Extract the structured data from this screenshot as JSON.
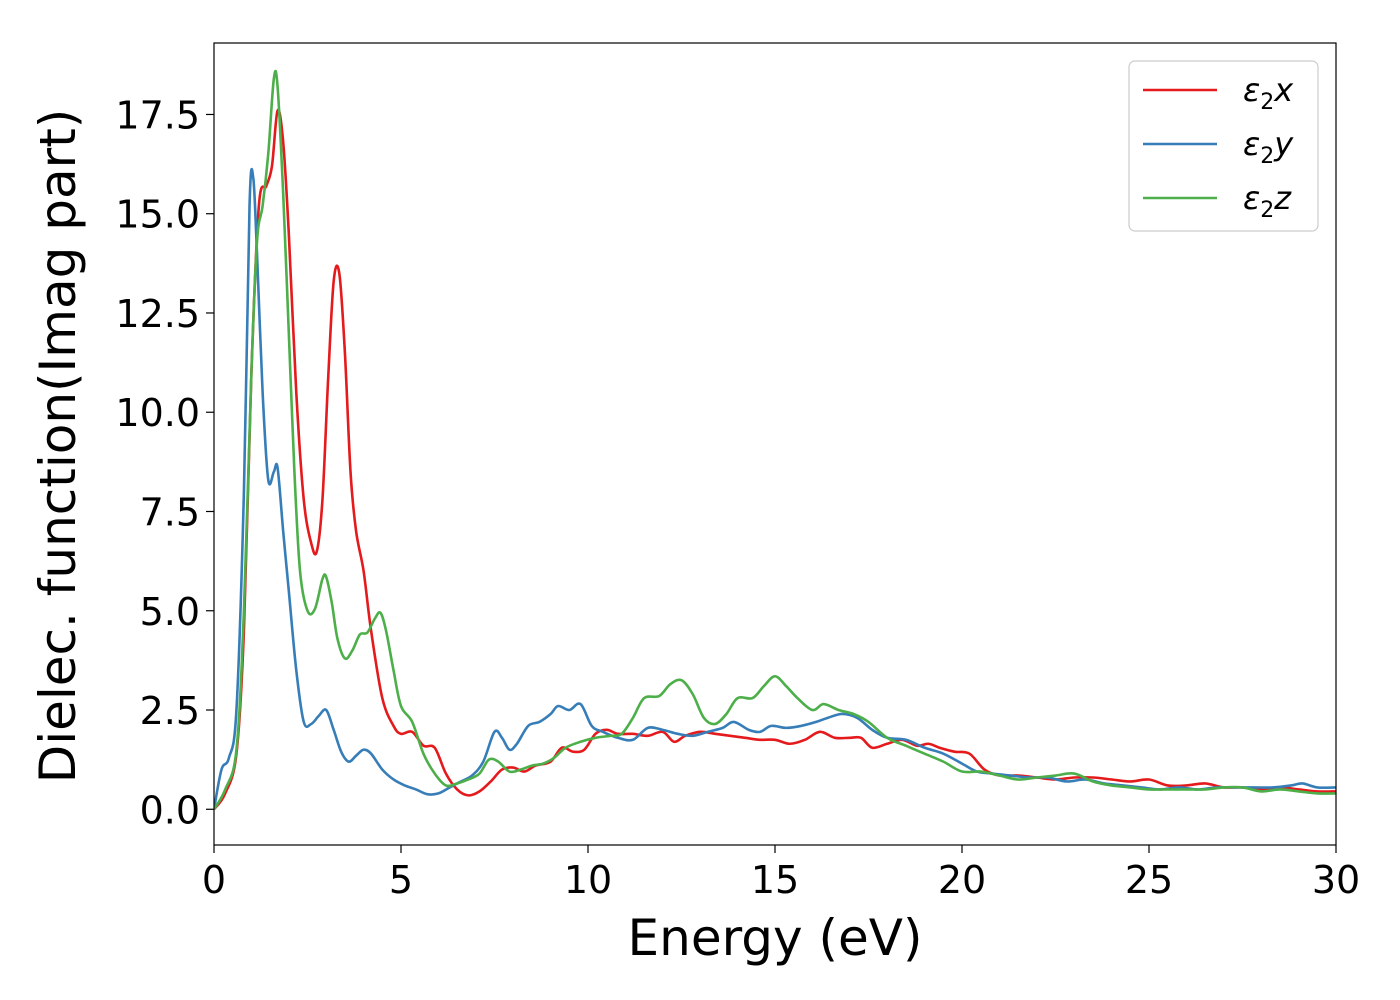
{
  "chart_data": {
    "type": "line",
    "title": "",
    "xlabel": "Energy (eV)",
    "ylabel": "Dielec. function(Imag part)",
    "xlim": [
      0,
      30
    ],
    "ylim": [
      -0.9,
      19.3
    ],
    "xticks": [
      0,
      5,
      10,
      15,
      20,
      25,
      30
    ],
    "xtick_labels": [
      "0",
      "5",
      "10",
      "15",
      "20",
      "25",
      "30"
    ],
    "yticks": [
      0.0,
      2.5,
      5.0,
      7.5,
      10.0,
      12.5,
      15.0,
      17.5
    ],
    "ytick_labels": [
      "0.0",
      "2.5",
      "5.0",
      "7.5",
      "10.0",
      "12.5",
      "15.0",
      "17.5"
    ],
    "grid": false,
    "legend": {
      "position": "top-right"
    },
    "series": [
      {
        "name": "ε₂x",
        "legend_label": {
          "symbol": "ε",
          "sub": "2",
          "var": "x"
        },
        "color": "#e41a1c",
        "points": [
          [
            0,
            0
          ],
          [
            0.3,
            0.4
          ],
          [
            0.6,
            1.4
          ],
          [
            0.8,
            4.5
          ],
          [
            1.0,
            11.0
          ],
          [
            1.2,
            15.2
          ],
          [
            1.4,
            15.7
          ],
          [
            1.55,
            16.2
          ],
          [
            1.7,
            17.6
          ],
          [
            1.85,
            16.8
          ],
          [
            2.0,
            14.5
          ],
          [
            2.2,
            10.5
          ],
          [
            2.4,
            7.8
          ],
          [
            2.6,
            6.7
          ],
          [
            2.75,
            6.5
          ],
          [
            2.9,
            7.8
          ],
          [
            3.05,
            10.8
          ],
          [
            3.2,
            13.3
          ],
          [
            3.35,
            13.5
          ],
          [
            3.5,
            11.5
          ],
          [
            3.65,
            8.5
          ],
          [
            3.8,
            7.0
          ],
          [
            4.0,
            6.0
          ],
          [
            4.2,
            4.5
          ],
          [
            4.5,
            2.8
          ],
          [
            4.8,
            2.1
          ],
          [
            5.0,
            1.9
          ],
          [
            5.3,
            1.95
          ],
          [
            5.6,
            1.6
          ],
          [
            5.9,
            1.55
          ],
          [
            6.2,
            0.9
          ],
          [
            6.5,
            0.5
          ],
          [
            6.8,
            0.35
          ],
          [
            7.1,
            0.45
          ],
          [
            7.4,
            0.7
          ],
          [
            7.7,
            1.0
          ],
          [
            8.0,
            1.05
          ],
          [
            8.3,
            0.95
          ],
          [
            8.6,
            1.1
          ],
          [
            9.0,
            1.2
          ],
          [
            9.3,
            1.55
          ],
          [
            9.6,
            1.45
          ],
          [
            9.9,
            1.5
          ],
          [
            10.2,
            1.9
          ],
          [
            10.5,
            2.0
          ],
          [
            10.8,
            1.9
          ],
          [
            11.2,
            1.9
          ],
          [
            11.6,
            1.85
          ],
          [
            12.0,
            1.95
          ],
          [
            12.3,
            1.7
          ],
          [
            12.6,
            1.85
          ],
          [
            13.0,
            1.95
          ],
          [
            13.4,
            1.9
          ],
          [
            13.8,
            1.85
          ],
          [
            14.2,
            1.8
          ],
          [
            14.6,
            1.75
          ],
          [
            15.0,
            1.75
          ],
          [
            15.4,
            1.65
          ],
          [
            15.8,
            1.75
          ],
          [
            16.2,
            1.95
          ],
          [
            16.6,
            1.8
          ],
          [
            17.0,
            1.8
          ],
          [
            17.3,
            1.8
          ],
          [
            17.6,
            1.55
          ],
          [
            18.0,
            1.65
          ],
          [
            18.4,
            1.75
          ],
          [
            18.8,
            1.6
          ],
          [
            19.1,
            1.65
          ],
          [
            19.4,
            1.55
          ],
          [
            19.8,
            1.45
          ],
          [
            20.2,
            1.4
          ],
          [
            20.6,
            1.0
          ],
          [
            21.0,
            0.85
          ],
          [
            21.5,
            0.85
          ],
          [
            22.0,
            0.8
          ],
          [
            22.5,
            0.75
          ],
          [
            23.0,
            0.8
          ],
          [
            23.5,
            0.8
          ],
          [
            24.0,
            0.75
          ],
          [
            24.5,
            0.7
          ],
          [
            25.0,
            0.75
          ],
          [
            25.5,
            0.6
          ],
          [
            26.0,
            0.6
          ],
          [
            26.5,
            0.65
          ],
          [
            27.0,
            0.55
          ],
          [
            27.5,
            0.55
          ],
          [
            28.0,
            0.5
          ],
          [
            28.5,
            0.55
          ],
          [
            29.0,
            0.5
          ],
          [
            29.5,
            0.45
          ],
          [
            30.0,
            0.45
          ]
        ]
      },
      {
        "name": "ε₂y",
        "legend_label": {
          "symbol": "ε",
          "sub": "2",
          "var": "y"
        },
        "color": "#377eb8",
        "points": [
          [
            0,
            0
          ],
          [
            0.2,
            1.0
          ],
          [
            0.4,
            1.3
          ],
          [
            0.6,
            2.5
          ],
          [
            0.8,
            8.0
          ],
          [
            0.95,
            15.2
          ],
          [
            1.05,
            15.9
          ],
          [
            1.15,
            14.0
          ],
          [
            1.3,
            10.5
          ],
          [
            1.45,
            8.3
          ],
          [
            1.6,
            8.5
          ],
          [
            1.7,
            8.6
          ],
          [
            1.85,
            7.0
          ],
          [
            2.0,
            5.5
          ],
          [
            2.2,
            3.5
          ],
          [
            2.4,
            2.2
          ],
          [
            2.6,
            2.15
          ],
          [
            2.8,
            2.35
          ],
          [
            3.0,
            2.5
          ],
          [
            3.2,
            2.0
          ],
          [
            3.4,
            1.45
          ],
          [
            3.6,
            1.2
          ],
          [
            3.8,
            1.35
          ],
          [
            4.0,
            1.5
          ],
          [
            4.2,
            1.4
          ],
          [
            4.5,
            1.0
          ],
          [
            4.8,
            0.75
          ],
          [
            5.1,
            0.6
          ],
          [
            5.4,
            0.5
          ],
          [
            5.7,
            0.38
          ],
          [
            6.0,
            0.4
          ],
          [
            6.3,
            0.55
          ],
          [
            6.6,
            0.7
          ],
          [
            6.9,
            0.85
          ],
          [
            7.2,
            1.2
          ],
          [
            7.5,
            1.95
          ],
          [
            7.7,
            1.8
          ],
          [
            7.9,
            1.5
          ],
          [
            8.1,
            1.65
          ],
          [
            8.4,
            2.1
          ],
          [
            8.7,
            2.2
          ],
          [
            9.0,
            2.4
          ],
          [
            9.2,
            2.6
          ],
          [
            9.5,
            2.5
          ],
          [
            9.8,
            2.65
          ],
          [
            10.1,
            2.1
          ],
          [
            10.4,
            1.95
          ],
          [
            10.8,
            1.8
          ],
          [
            11.2,
            1.75
          ],
          [
            11.6,
            2.05
          ],
          [
            12.0,
            2.0
          ],
          [
            12.4,
            1.9
          ],
          [
            12.8,
            1.85
          ],
          [
            13.2,
            1.95
          ],
          [
            13.6,
            2.05
          ],
          [
            13.9,
            2.2
          ],
          [
            14.3,
            2.0
          ],
          [
            14.6,
            1.95
          ],
          [
            14.9,
            2.1
          ],
          [
            15.3,
            2.05
          ],
          [
            15.7,
            2.1
          ],
          [
            16.1,
            2.2
          ],
          [
            16.4,
            2.3
          ],
          [
            16.8,
            2.4
          ],
          [
            17.2,
            2.3
          ],
          [
            17.6,
            2.0
          ],
          [
            18.0,
            1.8
          ],
          [
            18.5,
            1.75
          ],
          [
            19.0,
            1.55
          ],
          [
            19.5,
            1.4
          ],
          [
            20.0,
            1.15
          ],
          [
            20.4,
            0.95
          ],
          [
            20.8,
            0.9
          ],
          [
            21.3,
            0.85
          ],
          [
            21.8,
            0.8
          ],
          [
            22.3,
            0.8
          ],
          [
            22.8,
            0.7
          ],
          [
            23.3,
            0.75
          ],
          [
            23.8,
            0.65
          ],
          [
            24.3,
            0.6
          ],
          [
            24.8,
            0.55
          ],
          [
            25.3,
            0.5
          ],
          [
            25.8,
            0.55
          ],
          [
            26.3,
            0.5
          ],
          [
            26.8,
            0.55
          ],
          [
            27.3,
            0.55
          ],
          [
            27.8,
            0.55
          ],
          [
            28.3,
            0.55
          ],
          [
            28.8,
            0.6
          ],
          [
            29.1,
            0.65
          ],
          [
            29.5,
            0.55
          ],
          [
            30.0,
            0.55
          ]
        ]
      },
      {
        "name": "ε₂z",
        "legend_label": {
          "symbol": "ε",
          "sub": "2",
          "var": "z"
        },
        "color": "#4daf4a",
        "points": [
          [
            0,
            0
          ],
          [
            0.3,
            0.5
          ],
          [
            0.6,
            1.5
          ],
          [
            0.8,
            5.0
          ],
          [
            1.0,
            11.0
          ],
          [
            1.15,
            14.3
          ],
          [
            1.3,
            15.2
          ],
          [
            1.45,
            16.5
          ],
          [
            1.6,
            18.4
          ],
          [
            1.7,
            18.2
          ],
          [
            1.85,
            15.5
          ],
          [
            2.0,
            12.0
          ],
          [
            2.15,
            8.5
          ],
          [
            2.3,
            6.0
          ],
          [
            2.5,
            5.0
          ],
          [
            2.7,
            5.05
          ],
          [
            2.9,
            5.8
          ],
          [
            3.0,
            5.85
          ],
          [
            3.15,
            5.2
          ],
          [
            3.3,
            4.3
          ],
          [
            3.5,
            3.8
          ],
          [
            3.7,
            4.0
          ],
          [
            3.9,
            4.4
          ],
          [
            4.1,
            4.45
          ],
          [
            4.3,
            4.8
          ],
          [
            4.45,
            4.95
          ],
          [
            4.6,
            4.5
          ],
          [
            4.8,
            3.5
          ],
          [
            5.0,
            2.6
          ],
          [
            5.3,
            2.2
          ],
          [
            5.6,
            1.4
          ],
          [
            5.9,
            0.9
          ],
          [
            6.2,
            0.6
          ],
          [
            6.5,
            0.65
          ],
          [
            6.8,
            0.75
          ],
          [
            7.1,
            0.9
          ],
          [
            7.35,
            1.25
          ],
          [
            7.6,
            1.2
          ],
          [
            7.9,
            0.95
          ],
          [
            8.2,
            1.0
          ],
          [
            8.5,
            1.1
          ],
          [
            8.8,
            1.15
          ],
          [
            9.1,
            1.3
          ],
          [
            9.4,
            1.55
          ],
          [
            9.8,
            1.7
          ],
          [
            10.2,
            1.8
          ],
          [
            10.6,
            1.85
          ],
          [
            10.9,
            1.9
          ],
          [
            11.2,
            2.3
          ],
          [
            11.5,
            2.8
          ],
          [
            11.9,
            2.85
          ],
          [
            12.2,
            3.15
          ],
          [
            12.5,
            3.25
          ],
          [
            12.8,
            2.9
          ],
          [
            13.1,
            2.3
          ],
          [
            13.4,
            2.15
          ],
          [
            13.7,
            2.4
          ],
          [
            14.0,
            2.8
          ],
          [
            14.4,
            2.8
          ],
          [
            14.7,
            3.1
          ],
          [
            15.0,
            3.35
          ],
          [
            15.3,
            3.1
          ],
          [
            15.6,
            2.8
          ],
          [
            16.0,
            2.5
          ],
          [
            16.3,
            2.65
          ],
          [
            16.7,
            2.5
          ],
          [
            17.1,
            2.4
          ],
          [
            17.5,
            2.2
          ],
          [
            18.0,
            1.8
          ],
          [
            18.5,
            1.6
          ],
          [
            19.0,
            1.4
          ],
          [
            19.5,
            1.2
          ],
          [
            20.0,
            0.95
          ],
          [
            20.5,
            0.95
          ],
          [
            21.0,
            0.85
          ],
          [
            21.5,
            0.75
          ],
          [
            22.0,
            0.8
          ],
          [
            22.5,
            0.85
          ],
          [
            23.0,
            0.9
          ],
          [
            23.5,
            0.7
          ],
          [
            24.0,
            0.6
          ],
          [
            24.5,
            0.55
          ],
          [
            25.0,
            0.5
          ],
          [
            25.5,
            0.5
          ],
          [
            26.0,
            0.5
          ],
          [
            26.5,
            0.5
          ],
          [
            27.0,
            0.55
          ],
          [
            27.5,
            0.55
          ],
          [
            28.0,
            0.45
          ],
          [
            28.5,
            0.5
          ],
          [
            29.0,
            0.45
          ],
          [
            29.5,
            0.4
          ],
          [
            30.0,
            0.4
          ]
        ]
      }
    ]
  }
}
